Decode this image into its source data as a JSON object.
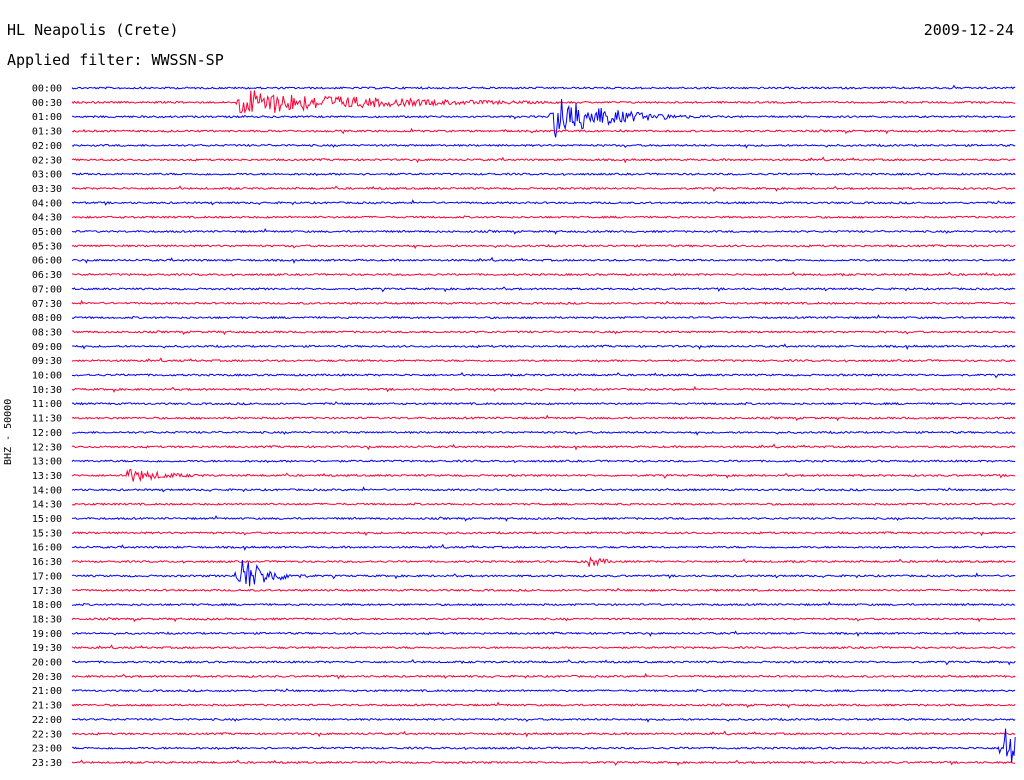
{
  "header": {
    "station": "HL Neapolis (Crete)",
    "date": "2009-12-24",
    "filter_label": "Applied filter: WWSSN-SP"
  },
  "chart_data": {
    "type": "line",
    "title": "HL Neapolis (Crete)",
    "ylabel": "BHZ - 50000",
    "xlabel": "",
    "line_colors": [
      "#0000ff",
      "#ff0033"
    ],
    "row_labels": [
      "00:00",
      "00:30",
      "01:00",
      "01:30",
      "02:00",
      "02:30",
      "03:00",
      "03:30",
      "04:00",
      "04:30",
      "05:00",
      "05:30",
      "06:00",
      "06:30",
      "07:00",
      "07:30",
      "08:00",
      "08:30",
      "09:00",
      "09:30",
      "10:00",
      "10:30",
      "11:00",
      "11:30",
      "12:00",
      "12:30",
      "13:00",
      "13:30",
      "14:00",
      "14:30",
      "15:00",
      "15:30",
      "16:00",
      "16:30",
      "17:00",
      "17:30",
      "18:00",
      "18:30",
      "19:00",
      "19:30",
      "20:00",
      "20:30",
      "21:00",
      "21:30",
      "22:00",
      "22:30",
      "23:00",
      "23:30"
    ],
    "events": [
      {
        "row": "00:30",
        "minute": 5.3,
        "amplitude": 14,
        "duration_min": 5
      },
      {
        "row": "01:00",
        "minute": 15.3,
        "amplitude": 24,
        "duration_min": 2
      },
      {
        "row": "13:30",
        "minute": 1.7,
        "amplitude": 8,
        "duration_min": 1.5
      },
      {
        "row": "17:00",
        "minute": 5.3,
        "amplitude": 22,
        "duration_min": 1
      },
      {
        "row": "16:30",
        "minute": 16.4,
        "amplitude": 7,
        "duration_min": 0.6
      },
      {
        "row": "23:00",
        "minute": 29.6,
        "amplitude": 28,
        "duration_min": 1.2
      }
    ]
  }
}
